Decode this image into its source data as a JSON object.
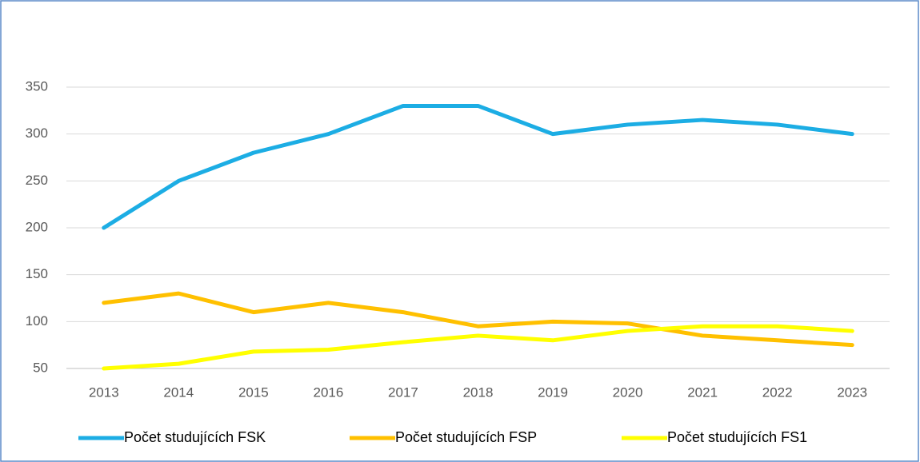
{
  "chart_data": {
    "type": "line",
    "categories": [
      "2013",
      "2014",
      "2015",
      "2016",
      "2017",
      "2018",
      "2019",
      "2020",
      "2021",
      "2022",
      "2023"
    ],
    "series": [
      {
        "name": "Počet studujících FSK",
        "color": "#1cade4",
        "values": [
          200,
          250,
          280,
          300,
          330,
          330,
          300,
          310,
          315,
          310,
          300
        ]
      },
      {
        "name": "Počet studujících FSP",
        "color": "#ffc000",
        "values": [
          120,
          130,
          110,
          120,
          110,
          95,
          100,
          98,
          85,
          80,
          75
        ]
      },
      {
        "name": "Počet studujících FS1",
        "color": "#ffff00",
        "values": [
          50,
          55,
          68,
          70,
          78,
          85,
          80,
          90,
          95,
          95,
          90
        ]
      }
    ],
    "ylim": [
      50,
      350
    ],
    "yticks": [
      50,
      100,
      150,
      200,
      250,
      300,
      350
    ],
    "grid": true,
    "legend": "bottom"
  }
}
